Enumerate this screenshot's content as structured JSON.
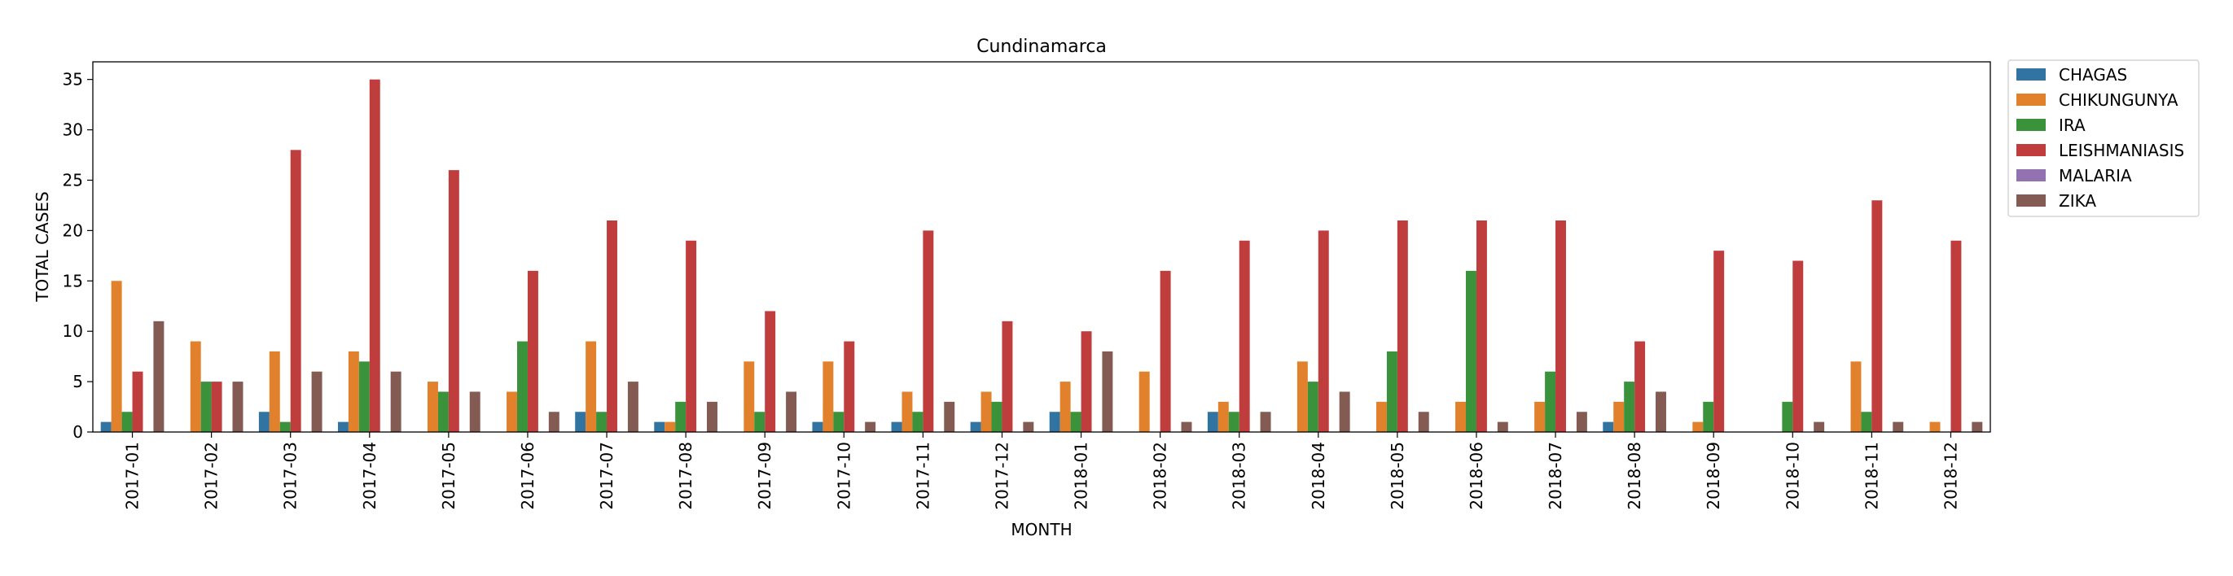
{
  "chart_data": {
    "type": "bar",
    "title": "Cundinamarca",
    "xlabel": "MONTH",
    "ylabel": "TOTAL CASES",
    "ylim": [
      0,
      36.75
    ],
    "yticks": [
      0,
      5,
      10,
      15,
      20,
      25,
      30,
      35
    ],
    "grid": false,
    "legend_position": "outside-top-right",
    "categories": [
      "2017-01",
      "2017-02",
      "2017-03",
      "2017-04",
      "2017-05",
      "2017-06",
      "2017-07",
      "2017-08",
      "2017-09",
      "2017-10",
      "2017-11",
      "2017-12",
      "2018-01",
      "2018-02",
      "2018-03",
      "2018-04",
      "2018-05",
      "2018-06",
      "2018-07",
      "2018-08",
      "2018-09",
      "2018-10",
      "2018-11",
      "2018-12"
    ],
    "series": [
      {
        "name": "CHAGAS",
        "color": "#3274a1",
        "values": [
          1,
          0,
          2,
          1,
          0,
          0,
          2,
          1,
          0,
          1,
          1,
          1,
          2,
          0,
          2,
          0,
          0,
          0,
          0,
          1,
          0,
          0,
          0,
          0
        ]
      },
      {
        "name": "CHIKUNGUNYA",
        "color": "#e1812c",
        "values": [
          15,
          9,
          8,
          8,
          5,
          4,
          9,
          1,
          7,
          7,
          4,
          4,
          5,
          6,
          3,
          7,
          3,
          3,
          3,
          3,
          1,
          0,
          7,
          1
        ]
      },
      {
        "name": "IRA",
        "color": "#3a923a",
        "values": [
          2,
          5,
          1,
          7,
          4,
          9,
          2,
          3,
          2,
          2,
          2,
          3,
          2,
          0,
          2,
          5,
          8,
          16,
          6,
          5,
          3,
          3,
          2,
          0
        ]
      },
      {
        "name": "LEISHMANIASIS",
        "color": "#c03d3e",
        "values": [
          6,
          5,
          28,
          35,
          26,
          16,
          21,
          19,
          12,
          9,
          20,
          11,
          10,
          16,
          19,
          20,
          21,
          21,
          21,
          9,
          18,
          17,
          23,
          19
        ]
      },
      {
        "name": "MALARIA",
        "color": "#9372b2",
        "values": [
          0,
          0,
          0,
          0,
          0,
          0,
          0,
          0,
          0,
          0,
          0,
          0,
          0,
          0,
          0,
          0,
          0,
          0,
          0,
          0,
          0,
          0,
          0,
          0
        ]
      },
      {
        "name": "ZIKA",
        "color": "#845b53",
        "values": [
          11,
          5,
          6,
          6,
          4,
          2,
          5,
          3,
          4,
          1,
          3,
          1,
          8,
          1,
          2,
          4,
          2,
          1,
          2,
          4,
          0,
          1,
          1,
          1
        ]
      }
    ]
  }
}
